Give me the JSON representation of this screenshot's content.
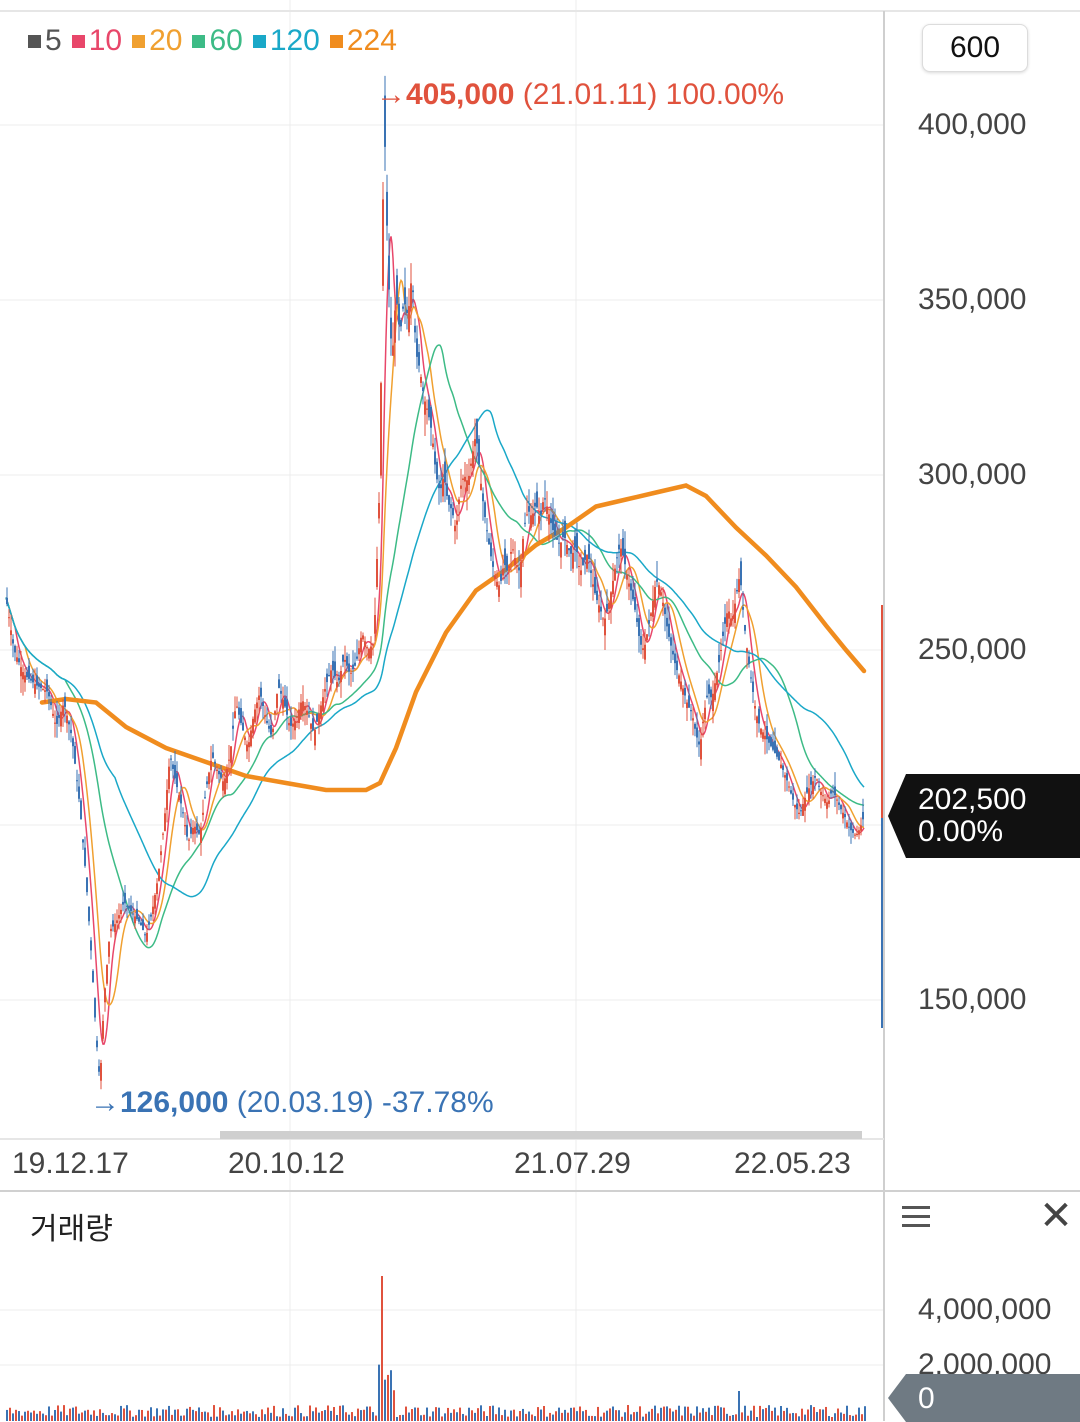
{
  "legend": [
    {
      "label": "5",
      "color": "#555555"
    },
    {
      "label": "10",
      "color": "#e8476a"
    },
    {
      "label": "20",
      "color": "#f0a030"
    },
    {
      "label": "60",
      "color": "#3dbb86"
    },
    {
      "label": "120",
      "color": "#1aa8c8"
    },
    {
      "label": "224",
      "color": "#f08c1e"
    }
  ],
  "period_button": "600",
  "price_axis": [
    "400,000",
    "350,000",
    "300,000",
    "250,000",
    "150,000"
  ],
  "date_axis": [
    "19.12.17",
    "20.10.12",
    "21.07.29",
    "22.05.23"
  ],
  "high": {
    "arrow": "→",
    "price": "405,000",
    "date": "(21.01.11)",
    "pct": "100.00%"
  },
  "low": {
    "arrow": "→",
    "price": "126,000",
    "date": "(20.03.19)",
    "pct": "-37.78%"
  },
  "current": {
    "price": "202,500",
    "pct": "0.00%"
  },
  "volume": {
    "title": "거래량",
    "axis": [
      "4,000,000",
      "2,000,000"
    ],
    "current": "0",
    "menu_icon": "hamburger-icon",
    "close_icon": "close-icon",
    "close_glyph": "✕"
  },
  "chart_data": {
    "type": "line",
    "ylim": [
      110000,
      430000
    ],
    "close_series": [
      [
        0,
        265000
      ],
      [
        8,
        250000
      ],
      [
        18,
        243000
      ],
      [
        30,
        240000
      ],
      [
        42,
        238000
      ],
      [
        50,
        228000
      ],
      [
        58,
        235000
      ],
      [
        66,
        225000
      ],
      [
        74,
        205000
      ],
      [
        80,
        185000
      ],
      [
        86,
        160000
      ],
      [
        90,
        140000
      ],
      [
        94,
        126000
      ],
      [
        98,
        150000
      ],
      [
        104,
        170000
      ],
      [
        110,
        172000
      ],
      [
        118,
        178000
      ],
      [
        126,
        175000
      ],
      [
        134,
        172000
      ],
      [
        140,
        168000
      ],
      [
        146,
        175000
      ],
      [
        152,
        185000
      ],
      [
        158,
        200000
      ],
      [
        164,
        220000
      ],
      [
        170,
        212000
      ],
      [
        176,
        205000
      ],
      [
        182,
        195000
      ],
      [
        188,
        200000
      ],
      [
        194,
        197000
      ],
      [
        200,
        210000
      ],
      [
        206,
        220000
      ],
      [
        212,
        215000
      ],
      [
        218,
        212000
      ],
      [
        224,
        220000
      ],
      [
        230,
        235000
      ],
      [
        236,
        228000
      ],
      [
        242,
        222000
      ],
      [
        248,
        232000
      ],
      [
        254,
        238000
      ],
      [
        260,
        230000
      ],
      [
        266,
        225000
      ],
      [
        272,
        240000
      ],
      [
        278,
        235000
      ],
      [
        284,
        228000
      ],
      [
        290,
        230000
      ],
      [
        296,
        236000
      ],
      [
        302,
        232000
      ],
      [
        308,
        226000
      ],
      [
        314,
        233000
      ],
      [
        320,
        240000
      ],
      [
        326,
        245000
      ],
      [
        332,
        240000
      ],
      [
        338,
        248000
      ],
      [
        344,
        243000
      ],
      [
        350,
        246000
      ],
      [
        356,
        255000
      ],
      [
        362,
        250000
      ],
      [
        368,
        252000
      ],
      [
        374,
        300000
      ],
      [
        378,
        405000
      ],
      [
        382,
        360000
      ],
      [
        386,
        332000
      ],
      [
        390,
        352000
      ],
      [
        394,
        340000
      ],
      [
        398,
        350000
      ],
      [
        402,
        345000
      ],
      [
        406,
        358000
      ],
      [
        410,
        335000
      ],
      [
        414,
        330000
      ],
      [
        418,
        322000
      ],
      [
        422,
        318000
      ],
      [
        426,
        312000
      ],
      [
        430,
        300000
      ],
      [
        434,
        295000
      ],
      [
        438,
        300000
      ],
      [
        442,
        292000
      ],
      [
        446,
        290000
      ],
      [
        450,
        284000
      ],
      [
        454,
        296000
      ],
      [
        458,
        300000
      ],
      [
        462,
        298000
      ],
      [
        466,
        305000
      ],
      [
        470,
        312000
      ],
      [
        474,
        300000
      ],
      [
        478,
        290000
      ],
      [
        482,
        282000
      ],
      [
        486,
        275000
      ],
      [
        490,
        270000
      ],
      [
        494,
        268000
      ],
      [
        498,
        275000
      ],
      [
        502,
        272000
      ],
      [
        506,
        280000
      ],
      [
        510,
        275000
      ],
      [
        514,
        272000
      ],
      [
        518,
        285000
      ],
      [
        522,
        290000
      ],
      [
        526,
        288000
      ],
      [
        530,
        292000
      ],
      [
        534,
        287000
      ],
      [
        538,
        294000
      ],
      [
        542,
        290000
      ],
      [
        546,
        285000
      ],
      [
        550,
        282000
      ],
      [
        554,
        280000
      ],
      [
        558,
        283000
      ],
      [
        562,
        279000
      ],
      [
        566,
        277000
      ],
      [
        570,
        280000
      ],
      [
        574,
        272000
      ],
      [
        578,
        275000
      ],
      [
        582,
        278000
      ],
      [
        586,
        270000
      ],
      [
        590,
        265000
      ],
      [
        594,
        262000
      ],
      [
        598,
        258000
      ],
      [
        602,
        262000
      ],
      [
        606,
        268000
      ],
      [
        610,
        275000
      ],
      [
        614,
        280000
      ],
      [
        618,
        276000
      ],
      [
        622,
        270000
      ],
      [
        626,
        266000
      ],
      [
        630,
        260000
      ],
      [
        634,
        252000
      ],
      [
        638,
        250000
      ],
      [
        642,
        256000
      ],
      [
        646,
        262000
      ],
      [
        650,
        270000
      ],
      [
        654,
        268000
      ],
      [
        658,
        262000
      ],
      [
        662,
        255000
      ],
      [
        666,
        250000
      ],
      [
        670,
        245000
      ],
      [
        674,
        242000
      ],
      [
        678,
        238000
      ],
      [
        682,
        234000
      ],
      [
        686,
        232000
      ],
      [
        690,
        226000
      ],
      [
        694,
        222000
      ],
      [
        698,
        232000
      ],
      [
        702,
        238000
      ],
      [
        706,
        236000
      ],
      [
        710,
        242000
      ],
      [
        714,
        248000
      ],
      [
        718,
        256000
      ],
      [
        722,
        262000
      ],
      [
        726,
        258000
      ],
      [
        730,
        265000
      ],
      [
        734,
        272000
      ],
      [
        738,
        258000
      ],
      [
        742,
        248000
      ],
      [
        746,
        240000
      ],
      [
        750,
        232000
      ],
      [
        754,
        228000
      ],
      [
        758,
        226000
      ],
      [
        762,
        224000
      ],
      [
        766,
        222000
      ],
      [
        770,
        220000
      ],
      [
        774,
        218000
      ],
      [
        778,
        215000
      ],
      [
        782,
        212000
      ],
      [
        786,
        208000
      ],
      [
        790,
        205000
      ],
      [
        794,
        203000
      ],
      [
        798,
        207000
      ],
      [
        802,
        210000
      ],
      [
        806,
        212000
      ],
      [
        810,
        214000
      ],
      [
        814,
        210000
      ],
      [
        818,
        208000
      ],
      [
        822,
        206000
      ],
      [
        826,
        210000
      ],
      [
        830,
        208000
      ],
      [
        834,
        205000
      ],
      [
        838,
        203000
      ],
      [
        842,
        200000
      ],
      [
        846,
        198000
      ],
      [
        850,
        197000
      ],
      [
        854,
        199000
      ],
      [
        858,
        202500
      ]
    ],
    "ma224_series": [
      [
        36,
        235000
      ],
      [
        60,
        236000
      ],
      [
        90,
        235000
      ],
      [
        120,
        228000
      ],
      [
        160,
        222000
      ],
      [
        200,
        218000
      ],
      [
        240,
        214000
      ],
      [
        280,
        212000
      ],
      [
        320,
        210000
      ],
      [
        360,
        210000
      ],
      [
        374,
        212000
      ],
      [
        390,
        222000
      ],
      [
        410,
        238000
      ],
      [
        440,
        255000
      ],
      [
        470,
        267000
      ],
      [
        500,
        273000
      ],
      [
        530,
        280000
      ],
      [
        560,
        285000
      ],
      [
        590,
        291000
      ],
      [
        620,
        293000
      ],
      [
        650,
        295000
      ],
      [
        680,
        297000
      ],
      [
        700,
        294000
      ],
      [
        730,
        285000
      ],
      [
        760,
        277000
      ],
      [
        790,
        268000
      ],
      [
        820,
        257000
      ],
      [
        840,
        250000
      ],
      [
        858,
        244000
      ]
    ]
  }
}
